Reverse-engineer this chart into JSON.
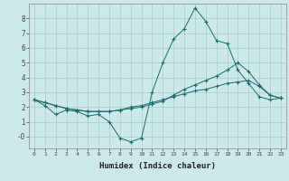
{
  "xlabel": "Humidex (Indice chaleur)",
  "x": [
    0,
    1,
    2,
    3,
    4,
    5,
    6,
    7,
    8,
    9,
    10,
    11,
    12,
    13,
    14,
    15,
    16,
    17,
    18,
    19,
    20,
    21,
    22,
    23
  ],
  "line1": [
    2.5,
    2.1,
    1.5,
    1.8,
    1.7,
    1.4,
    1.5,
    1.0,
    -0.1,
    -0.35,
    -0.1,
    3.0,
    5.0,
    6.6,
    7.3,
    8.7,
    7.8,
    6.5,
    6.3,
    4.5,
    3.6,
    2.7,
    2.5,
    2.6
  ],
  "line2": [
    2.5,
    2.3,
    2.1,
    1.9,
    1.8,
    1.7,
    1.7,
    1.7,
    1.8,
    1.9,
    2.0,
    2.2,
    2.4,
    2.8,
    3.2,
    3.5,
    3.8,
    4.1,
    4.5,
    5.0,
    4.4,
    3.5,
    2.8,
    2.6
  ],
  "line3": [
    2.5,
    2.3,
    2.1,
    1.9,
    1.8,
    1.7,
    1.7,
    1.7,
    1.8,
    2.0,
    2.1,
    2.3,
    2.5,
    2.7,
    2.9,
    3.1,
    3.2,
    3.4,
    3.6,
    3.7,
    3.8,
    3.4,
    2.8,
    2.6
  ],
  "line_color": "#1a6b6b",
  "bg_color": "#cde8e8",
  "grid_color": "#aacaca",
  "ylim": [
    -0.8,
    9.0
  ],
  "xlim": [
    -0.5,
    23.5
  ],
  "yticks": [
    0,
    1,
    2,
    3,
    4,
    5,
    6,
    7,
    8
  ],
  "ytick_labels": [
    "-0",
    "1",
    "2",
    "3",
    "4",
    "5",
    "6",
    "7",
    "8"
  ],
  "xtick_labels": [
    "0",
    "1",
    "2",
    "3",
    "4",
    "5",
    "6",
    "7",
    "8",
    "9",
    "10",
    "11",
    "12",
    "13",
    "14",
    "15",
    "16",
    "17",
    "18",
    "19",
    "20",
    "21",
    "22",
    "23"
  ]
}
